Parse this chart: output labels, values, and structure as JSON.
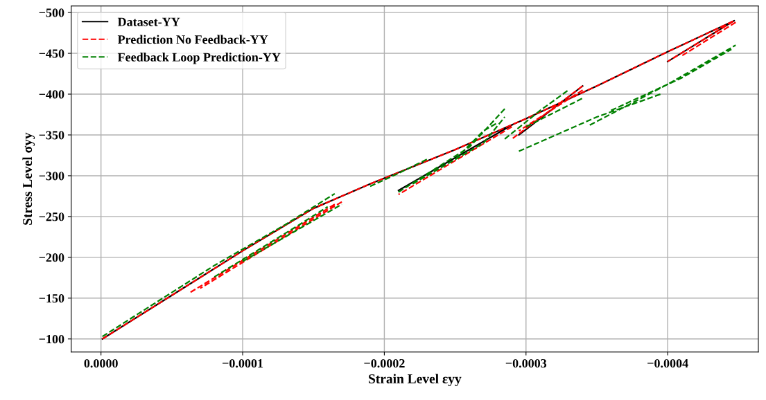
{
  "chart_data": {
    "type": "line",
    "xlabel": "Strain Level εyy",
    "ylabel": "Stress Level σyy",
    "xlim": [
      2.1e-05,
      -0.000464
    ],
    "ylim": [
      -84,
      -508
    ],
    "xticks": [
      {
        "value": 0,
        "label": "0.0000"
      },
      {
        "value": -0.0001,
        "label": "−0.0001"
      },
      {
        "value": -0.0002,
        "label": "−0.0002"
      },
      {
        "value": -0.0003,
        "label": "−0.0003"
      },
      {
        "value": -0.0004,
        "label": "−0.0004"
      }
    ],
    "yticks": [
      {
        "value": -100,
        "label": "−100"
      },
      {
        "value": -150,
        "label": "−150"
      },
      {
        "value": -200,
        "label": "−200"
      },
      {
        "value": -250,
        "label": "−250"
      },
      {
        "value": -300,
        "label": "−300"
      },
      {
        "value": -350,
        "label": "−350"
      },
      {
        "value": -400,
        "label": "−400"
      },
      {
        "value": -450,
        "label": "−450"
      },
      {
        "value": -500,
        "label": "−500"
      }
    ],
    "grid": true,
    "legend": "top left",
    "series": [
      {
        "name": "Dataset-YY",
        "color": "#000000",
        "line_style": "solid",
        "x": [
          -1e-06,
          -0.0001,
          -0.00015,
          -0.00019,
          -0.00025,
          -0.0003,
          -0.00035,
          -0.0004,
          -0.000447,
          -0.0004,
          null,
          -0.00034,
          -0.000295,
          null,
          -0.00029,
          -0.00021
        ],
        "values": [
          -100,
          -208,
          -260,
          -290,
          -332,
          -370,
          -410,
          -452,
          -490,
          -440,
          null,
          -410,
          -350,
          null,
          -362,
          -282
        ]
      },
      {
        "name": "Prediction No Feedback-YY",
        "color": "#ff0000",
        "line_style": "dashed",
        "x": [
          -1e-06,
          -0.0001,
          -0.00015,
          -0.00019,
          -0.00025,
          -0.0003,
          -0.00035,
          -0.0004,
          -0.000447,
          -0.0004,
          null,
          -0.000448,
          -0.00041,
          null,
          -0.00034,
          -0.00029,
          null,
          -0.00034,
          -0.000295,
          null,
          -0.00029,
          -0.00021,
          null,
          -0.000165,
          -6.3e-05,
          null,
          -0.00017,
          -7e-05
        ],
        "values": [
          -100,
          -208,
          -260,
          -290,
          -332,
          -370,
          -410,
          -452,
          -490,
          -440,
          null,
          -488,
          -447,
          null,
          -410,
          -345,
          null,
          -405,
          -355,
          null,
          -360,
          -277,
          null,
          -265,
          -157,
          null,
          -268,
          -162
        ]
      },
      {
        "name": "Feedback Loop Prediction-YY",
        "color": "#008000",
        "line_style": "dashed",
        "x": [
          -1e-06,
          -8e-05,
          -0.00013,
          -0.000165,
          null,
          -8e-05,
          -0.00014,
          -0.00016,
          null,
          -0.0001,
          -0.00014,
          -0.00017,
          null,
          -0.00019,
          -0.00021,
          -0.00023,
          null,
          -0.00021,
          -0.00026,
          -0.000285,
          null,
          -0.00022,
          -0.00027,
          -0.000285,
          null,
          -0.00025,
          -0.00027,
          -0.00028,
          null,
          -0.000295,
          -0.00035,
          -0.000395,
          null,
          -0.000285,
          -0.00031,
          -0.00033,
          null,
          -0.000345,
          -0.0004,
          -0.000448,
          null,
          -0.00036,
          -0.00041,
          -0.000445,
          null,
          -0.0003,
          -0.00034
        ],
        "values": [
          -103,
          -190,
          -240,
          -278,
          null,
          -176,
          -240,
          -262,
          null,
          -195,
          -235,
          -265,
          null,
          -287,
          -303,
          -320,
          null,
          -280,
          -335,
          -382,
          null,
          -290,
          -340,
          -372,
          null,
          -320,
          -355,
          -365,
          null,
          -330,
          -372,
          -400,
          null,
          -345,
          -380,
          -405,
          null,
          -362,
          -412,
          -460,
          null,
          -380,
          -420,
          -455,
          null,
          -360,
          -395
        ]
      }
    ]
  }
}
